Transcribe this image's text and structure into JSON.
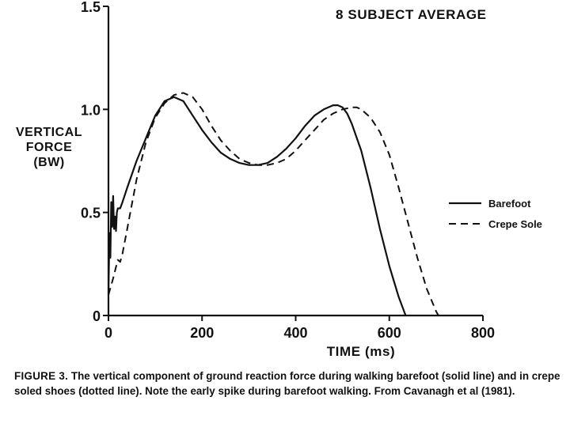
{
  "chart_data": {
    "type": "line",
    "title": "8 SUBJECT AVERAGE",
    "ylabel_lines": [
      "VERTICAL",
      "FORCE",
      "(BW)"
    ],
    "xlabel": "TIME (ms)",
    "xlim": [
      0,
      800
    ],
    "ylim": [
      0,
      1.5
    ],
    "x_ticks": [
      0,
      200,
      400,
      600,
      800
    ],
    "x_tick_labels": [
      "0",
      "200",
      "400",
      "600",
      "800"
    ],
    "y_ticks": [
      0,
      0.5,
      1.0,
      1.5
    ],
    "y_tick_labels": [
      "0",
      "0.5",
      "1.0",
      "1.5"
    ],
    "grid": false,
    "legend_position": "right",
    "series": [
      {
        "name": "Barefoot",
        "style": "solid",
        "x": [
          0,
          2,
          4,
          6,
          8,
          10,
          12,
          14,
          16,
          18,
          20,
          25,
          30,
          40,
          60,
          80,
          100,
          120,
          140,
          160,
          180,
          200,
          220,
          240,
          260,
          280,
          300,
          320,
          340,
          360,
          380,
          400,
          420,
          440,
          460,
          480,
          490,
          500,
          510,
          520,
          540,
          560,
          580,
          600,
          620,
          635
        ],
        "y": [
          0.1,
          0.4,
          0.28,
          0.55,
          0.43,
          0.58,
          0.42,
          0.48,
          0.41,
          0.5,
          0.52,
          0.52,
          0.55,
          0.62,
          0.75,
          0.86,
          0.97,
          1.04,
          1.06,
          1.04,
          0.97,
          0.9,
          0.84,
          0.79,
          0.76,
          0.74,
          0.73,
          0.73,
          0.74,
          0.77,
          0.81,
          0.86,
          0.92,
          0.97,
          1.0,
          1.02,
          1.02,
          1.01,
          0.98,
          0.93,
          0.8,
          0.62,
          0.42,
          0.24,
          0.09,
          0.0
        ]
      },
      {
        "name": "Crepe Sole",
        "style": "dashed",
        "x": [
          0,
          10,
          20,
          25,
          30,
          40,
          60,
          80,
          100,
          120,
          140,
          160,
          180,
          200,
          220,
          240,
          260,
          280,
          300,
          320,
          340,
          360,
          380,
          400,
          420,
          440,
          460,
          480,
          500,
          520,
          530,
          540,
          560,
          580,
          600,
          620,
          640,
          660,
          680,
          700,
          705
        ],
        "y": [
          0.1,
          0.18,
          0.27,
          0.26,
          0.3,
          0.42,
          0.66,
          0.84,
          0.96,
          1.03,
          1.07,
          1.08,
          1.06,
          1.0,
          0.92,
          0.85,
          0.8,
          0.76,
          0.74,
          0.73,
          0.73,
          0.74,
          0.76,
          0.8,
          0.85,
          0.9,
          0.95,
          0.98,
          1.0,
          1.01,
          1.01,
          1.0,
          0.96,
          0.89,
          0.78,
          0.62,
          0.45,
          0.28,
          0.13,
          0.02,
          0.0
        ]
      }
    ]
  },
  "caption": {
    "label": "FIGURE 3.",
    "text": "The vertical component of ground reaction force during walking barefoot (solid line) and in crepe soled shoes (dotted line). Note the early spike during barefoot walking. From Cavanagh et al (1981)."
  }
}
